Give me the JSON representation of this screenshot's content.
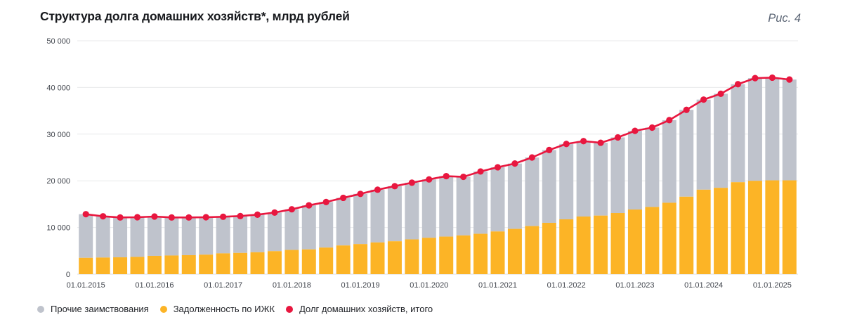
{
  "header": {
    "title": "Структура долга домашних хозяйств*, млрд рублей",
    "figure_label": "Рис. 4"
  },
  "colors": {
    "other_bar": "#bfc3cc",
    "mortgage_bar": "#fcb426",
    "total_line": "#e8173f",
    "gridline": "#e8e9eb",
    "zero_line": "#dcdde0",
    "axis_text": "#3f434b",
    "title_text": "#17191d",
    "figure_label_text": "#5a6474"
  },
  "legend": {
    "items": [
      {
        "name": "other",
        "label": "Прочие заимствования",
        "color": "#bfc3cc"
      },
      {
        "name": "mortgage",
        "label": "Задолженность по ИЖК",
        "color": "#fcb426"
      },
      {
        "name": "total",
        "label": "Долг домашних хозяйств, итого",
        "color": "#e8173f"
      }
    ]
  },
  "chart_data": {
    "type": "bar",
    "stacked": true,
    "title": "Структура долга домашних хозяйств*, млрд рублей",
    "xlabel": "",
    "ylabel": "млрд рублей",
    "ylim": [
      0,
      50000
    ],
    "grid": "horizontal",
    "legend_position": "bottom",
    "y_ticks": [
      0,
      10000,
      20000,
      30000,
      40000,
      50000
    ],
    "y_tick_labels": [
      "0",
      "10 000",
      "20 000",
      "30 000",
      "40 000",
      "50 000"
    ],
    "x_tick_labels": [
      "01.01.2015",
      "01.01.2016",
      "01.01.2017",
      "01.01.2018",
      "01.01.2019",
      "01.01.2020",
      "01.01.2021",
      "01.01.2022",
      "01.01.2023",
      "01.01.2024",
      "01.01.2025"
    ],
    "x_tick_every_n_bars": 4,
    "categories": [
      "01.01.2015",
      "01.04.2015",
      "01.07.2015",
      "01.10.2015",
      "01.01.2016",
      "01.04.2016",
      "01.07.2016",
      "01.10.2016",
      "01.01.2017",
      "01.04.2017",
      "01.07.2017",
      "01.10.2017",
      "01.01.2018",
      "01.04.2018",
      "01.07.2018",
      "01.10.2018",
      "01.01.2019",
      "01.04.2019",
      "01.07.2019",
      "01.10.2019",
      "01.01.2020",
      "01.04.2020",
      "01.07.2020",
      "01.10.2020",
      "01.01.2021",
      "01.04.2021",
      "01.07.2021",
      "01.10.2021",
      "01.01.2022",
      "01.04.2022",
      "01.07.2022",
      "01.10.2022",
      "01.01.2023",
      "01.04.2023",
      "01.07.2023",
      "01.10.2023",
      "01.01.2024",
      "01.04.2024",
      "01.07.2024",
      "01.10.2024",
      "01.01.2025",
      "01.04.2025"
    ],
    "series": [
      {
        "name": "Задолженность по ИЖК",
        "render": "bar-bottom",
        "color": "#fcb426",
        "values": [
          3500,
          3560,
          3610,
          3700,
          3920,
          4000,
          4070,
          4180,
          4460,
          4550,
          4700,
          4930,
          5190,
          5310,
          5700,
          6150,
          6450,
          6800,
          7050,
          7450,
          7800,
          8050,
          8300,
          8650,
          9150,
          9700,
          10300,
          11000,
          11750,
          12350,
          12550,
          13100,
          13850,
          14400,
          15300,
          16600,
          18100,
          18500,
          19700,
          20000,
          20100,
          20100
        ]
      },
      {
        "name": "Прочие заимствования",
        "render": "bar-top",
        "color": "#bfc3cc",
        "values": [
          9350,
          8840,
          8540,
          8500,
          8430,
          8150,
          8080,
          8020,
          7840,
          7900,
          8050,
          8270,
          8710,
          9440,
          9750,
          10200,
          10750,
          11300,
          11800,
          12150,
          12500,
          12950,
          12550,
          13350,
          13750,
          14000,
          14700,
          15600,
          16150,
          16150,
          15600,
          16200,
          16850,
          17000,
          17700,
          18600,
          19300,
          20150,
          21000,
          22000,
          22000,
          21600
        ]
      },
      {
        "name": "Долг домашних хозяйств, итого",
        "render": "line",
        "color": "#e8173f",
        "values": [
          12850,
          12400,
          12150,
          12200,
          12350,
          12150,
          12150,
          12200,
          12300,
          12450,
          12750,
          13200,
          13900,
          14750,
          15450,
          16350,
          17200,
          18100,
          18850,
          19600,
          20300,
          21000,
          20850,
          22000,
          22900,
          23700,
          25000,
          26600,
          27900,
          28500,
          28150,
          29300,
          30700,
          31400,
          33000,
          35200,
          37400,
          38650,
          40700,
          42000,
          42100,
          41700
        ]
      }
    ]
  }
}
